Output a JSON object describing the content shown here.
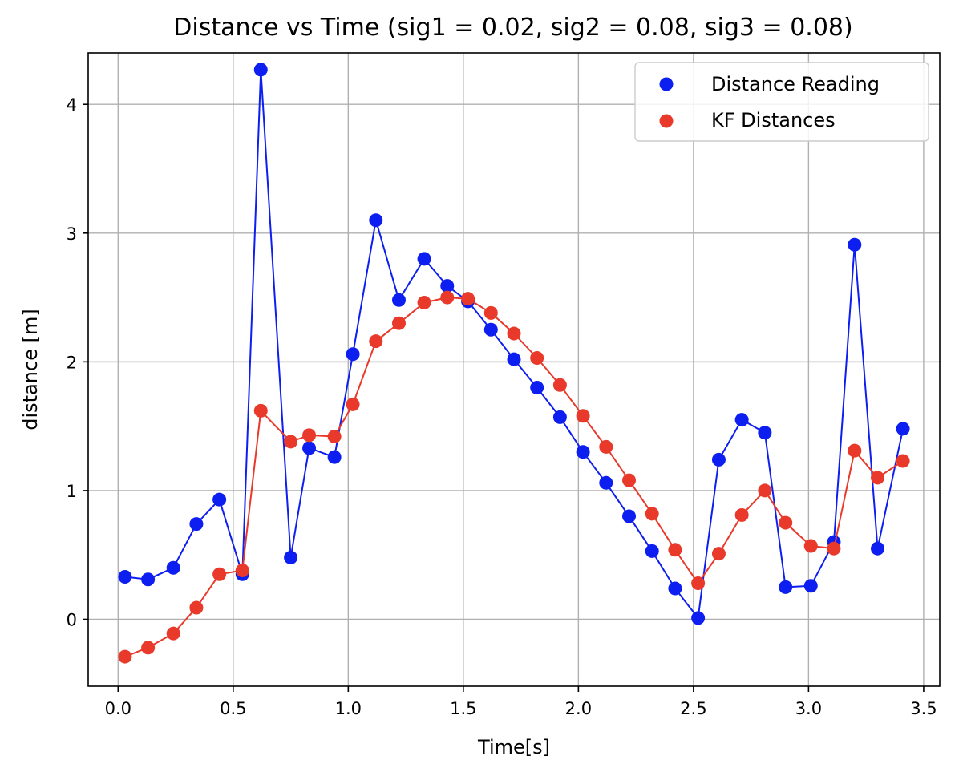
{
  "chart_data": {
    "type": "line",
    "title": "Distance vs Time (sig1 = 0.02, sig2 = 0.08, sig3 = 0.08)",
    "xlabel": "Time[s]",
    "ylabel": "distance [m]",
    "xlim": [
      -0.13,
      3.57
    ],
    "ylim": [
      -0.52,
      4.4
    ],
    "xticks": [
      0.0,
      0.5,
      1.0,
      1.5,
      2.0,
      2.5,
      3.0,
      3.5
    ],
    "xtick_labels": [
      "0.0",
      "0.5",
      "1.0",
      "1.5",
      "2.0",
      "2.5",
      "3.0",
      "3.5"
    ],
    "yticks": [
      0,
      1,
      2,
      3,
      4
    ],
    "ytick_labels": [
      "0",
      "1",
      "2",
      "3",
      "4"
    ],
    "grid": true,
    "legend_position": "top-right",
    "x": [
      0.03,
      0.13,
      0.24,
      0.34,
      0.44,
      0.54,
      0.62,
      0.75,
      0.83,
      0.94,
      1.02,
      1.12,
      1.22,
      1.33,
      1.43,
      1.52,
      1.62,
      1.72,
      1.82,
      1.92,
      2.02,
      2.12,
      2.22,
      2.32,
      2.42,
      2.52,
      2.61,
      2.71,
      2.81,
      2.9,
      3.01,
      3.11,
      3.2,
      3.3,
      3.41
    ],
    "series": [
      {
        "name": "Distance Reading",
        "color": "#0d1ef0",
        "values": [
          0.33,
          0.31,
          0.4,
          0.74,
          0.93,
          0.35,
          4.27,
          0.48,
          1.33,
          1.26,
          2.06,
          3.1,
          2.48,
          2.8,
          2.59,
          2.47,
          2.25,
          2.02,
          1.8,
          1.57,
          1.3,
          1.06,
          0.8,
          0.53,
          0.24,
          0.01,
          1.24,
          1.55,
          1.45,
          0.25,
          0.26,
          0.6,
          2.91,
          0.55,
          1.48
        ]
      },
      {
        "name": "KF Distances",
        "color": "#e8392b",
        "values": [
          -0.29,
          -0.22,
          -0.11,
          0.09,
          0.35,
          0.38,
          1.62,
          1.38,
          1.43,
          1.42,
          1.67,
          2.16,
          2.3,
          2.46,
          2.5,
          2.49,
          2.38,
          2.22,
          2.03,
          1.82,
          1.58,
          1.34,
          1.08,
          0.82,
          0.54,
          0.28,
          0.51,
          0.81,
          1.0,
          0.75,
          0.57,
          0.55,
          1.31,
          1.1,
          1.23
        ]
      }
    ]
  }
}
